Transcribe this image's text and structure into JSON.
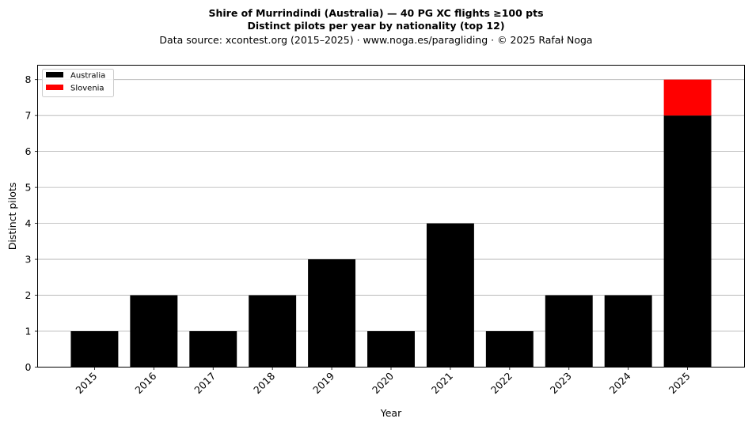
{
  "chart_data": {
    "type": "bar",
    "stacked": true,
    "title_line1": "Shire of Murrindindi (Australia)  —  40 PG XC flights ≥100 pts",
    "title_line2": "Distinct pilots per year by nationality (top 12)",
    "subtitle": "Data source: xcontest.org (2015–2025)  ·  www.noga.es/paragliding  ·  © 2025 Rafał Noga",
    "xlabel": "Year",
    "ylabel": "Distinct pilots",
    "categories": [
      "2015",
      "2016",
      "2017",
      "2018",
      "2019",
      "2020",
      "2021",
      "2022",
      "2023",
      "2024",
      "2025"
    ],
    "series": [
      {
        "name": "Australia",
        "color": "#000000",
        "values": [
          1,
          2,
          1,
          2,
          3,
          1,
          4,
          1,
          2,
          2,
          7
        ]
      },
      {
        "name": "Slovenia",
        "color": "#ff0000",
        "values": [
          0,
          0,
          0,
          0,
          0,
          0,
          0,
          0,
          0,
          0,
          1
        ]
      }
    ],
    "yticks": [
      "0",
      "1",
      "2",
      "3",
      "4",
      "5",
      "6",
      "7",
      "8"
    ],
    "ylim": [
      0,
      8.4
    ],
    "grid": "y",
    "legend_position": "top-left"
  }
}
